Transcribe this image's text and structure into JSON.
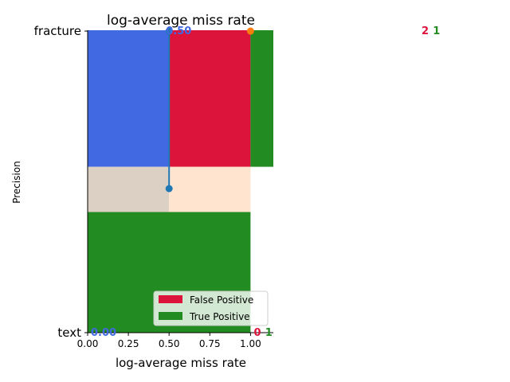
{
  "chart_data": {
    "type": "bar",
    "title": "log-average miss rate",
    "xlabel": "log-average miss rate",
    "ylabel": "Precision",
    "xlim": [
      0,
      1.14
    ],
    "x_ticks": [
      "0.00",
      "0.25",
      "0.50",
      "0.75",
      "1.00"
    ],
    "x_tick_values": [
      0,
      0.25,
      0.5,
      0.75,
      1.0
    ],
    "y_ticks": [
      "fracture",
      "text"
    ],
    "grid": false,
    "legend": {
      "placement": "lower right",
      "entries": [
        {
          "label": "False Positive",
          "color": "#dc143c"
        },
        {
          "label": "True Positive",
          "color": "#228b22"
        }
      ]
    },
    "background_regions": [
      {
        "name": "upper-left",
        "x": [
          0,
          0.5
        ],
        "y": [
          0.55,
          1.05
        ],
        "color": "#4169e1"
      },
      {
        "name": "upper-middle",
        "x": [
          0.5,
          1.0
        ],
        "y": [
          0.55,
          1.05
        ],
        "color": "#dc143c"
      },
      {
        "name": "upper-right",
        "x": [
          1.0,
          1.14
        ],
        "y": [
          0.55,
          1.05
        ],
        "color": "#228b22"
      },
      {
        "name": "middle-left",
        "x": [
          0,
          0.5
        ],
        "y": [
          0.4,
          0.55
        ],
        "color": "#dcd0c4"
      },
      {
        "name": "middle-right",
        "x": [
          0.5,
          1.0
        ],
        "y": [
          0.4,
          0.55
        ],
        "color": "#ffe4cf"
      },
      {
        "name": "lower",
        "x": [
          0,
          1.0
        ],
        "y": [
          0.0,
          0.4
        ],
        "color": "#228b22"
      }
    ],
    "series": [
      {
        "values": [
          {
            "x": 0.5,
            "y": 1.0
          },
          {
            "x": 0.5,
            "y": 0.5
          }
        ],
        "color": "#1f77b4",
        "kind": "line-markers"
      },
      {
        "values": [
          {
            "x": 1.0,
            "y": 1.0
          }
        ],
        "color": "#ff7f0e",
        "kind": "marker"
      }
    ],
    "annotations": [
      {
        "text": "0.50",
        "x": 0.5,
        "y": 1.0,
        "color": "#4169e1"
      },
      {
        "text": "0.00",
        "x": 0.0,
        "y": 0.0,
        "color": "#4169e1"
      },
      {
        "text": "2",
        "x": 2.05,
        "y": 1.0,
        "color": "#dc143c"
      },
      {
        "text": "1",
        "x": 2.12,
        "y": 1.0,
        "color": "#228b22"
      },
      {
        "text": "0",
        "x": 1.02,
        "y": 0.0,
        "color": "#dc143c"
      },
      {
        "text": "1",
        "x": 1.09,
        "y": 0.0,
        "color": "#228b22"
      }
    ]
  }
}
